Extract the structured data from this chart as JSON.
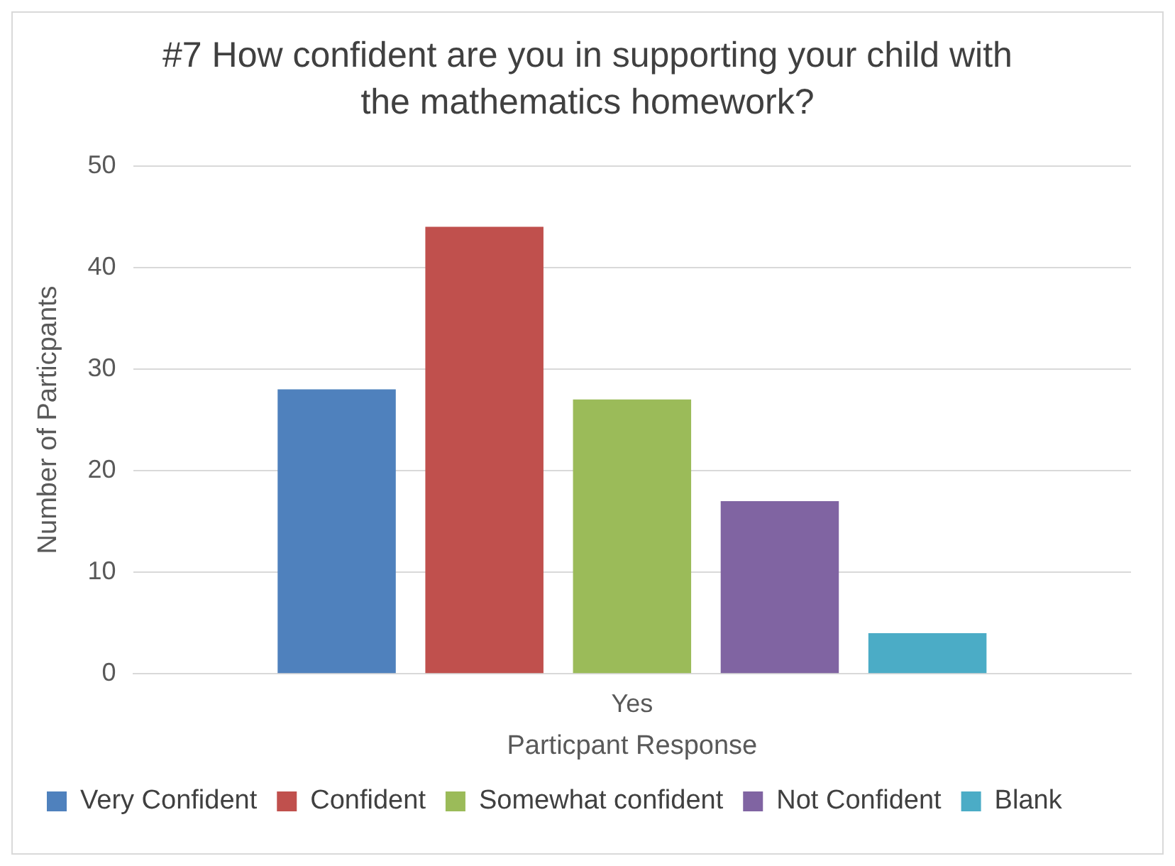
{
  "chart_data": {
    "type": "bar",
    "title": "#7 How confident are you in supporting your child with the mathematics homework?",
    "xlabel": "Particpant Response",
    "ylabel": "Number of Particpants",
    "categories": [
      "Yes"
    ],
    "series": [
      {
        "name": "Very Confident",
        "color": "#4f81bd",
        "values": [
          28
        ]
      },
      {
        "name": "Confident",
        "color": "#c0504d",
        "values": [
          44
        ]
      },
      {
        "name": "Somewhat confident",
        "color": "#9bbb59",
        "values": [
          27
        ]
      },
      {
        "name": "Not Confident",
        "color": "#8064a2",
        "values": [
          17
        ]
      },
      {
        "name": "Blank",
        "color": "#4bacc6",
        "values": [
          4
        ]
      }
    ],
    "ylim": [
      0,
      50
    ],
    "yticks": [
      0,
      10,
      20,
      30,
      40,
      50
    ],
    "grid": "y",
    "legend": "bottom"
  }
}
